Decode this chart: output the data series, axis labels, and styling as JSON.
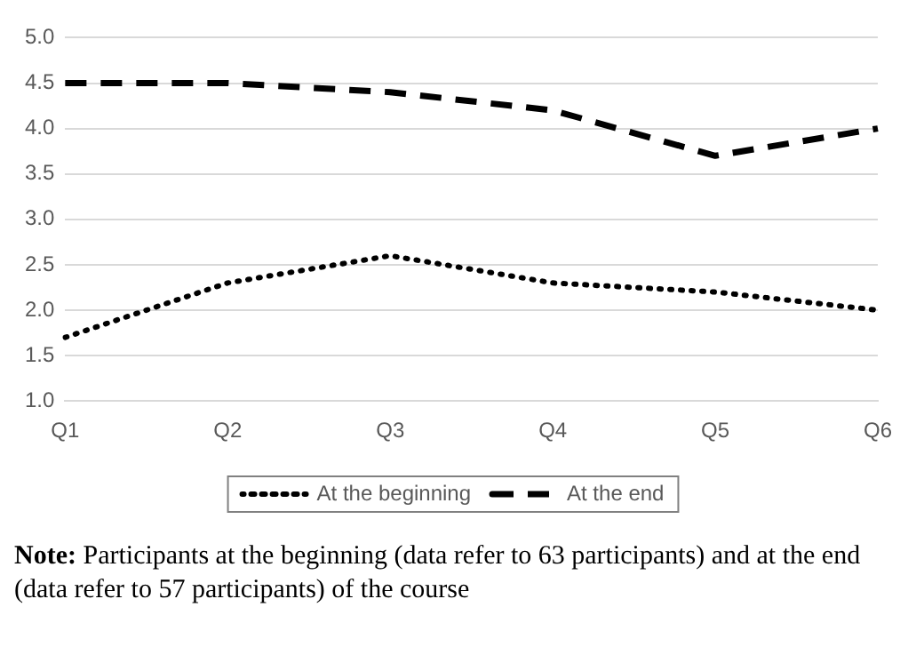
{
  "chart_data": {
    "type": "line",
    "categories": [
      "Q1",
      "Q2",
      "Q3",
      "Q4",
      "Q5",
      "Q6"
    ],
    "series": [
      {
        "name": "At the beginning",
        "color": "#000000",
        "line_style": "dotted",
        "values": [
          1.7,
          2.3,
          2.6,
          2.3,
          2.2,
          2.0
        ]
      },
      {
        "name": "At the end",
        "color": "#000000",
        "line_style": "dashed",
        "values": [
          4.5,
          4.5,
          4.4,
          4.2,
          3.7,
          4.0
        ]
      }
    ],
    "ylim": [
      1.0,
      5.0
    ],
    "yticks": [
      {
        "value": 1,
        "label": "1.0"
      },
      1.5,
      {
        "value": 2,
        "label": "2.0"
      },
      2.5,
      {
        "value": 3,
        "label": "3.0"
      },
      3.5,
      {
        "value": 4,
        "label": "4.0"
      },
      4.5,
      {
        "value": 5,
        "label": "5.0"
      }
    ],
    "grid": "y",
    "legend": "bottom",
    "marker": "none",
    "annotations": [
      "Note: Participants at the beginning (data refer to 63 participants) and at the end (data refer to 57 participants) of the course"
    ]
  }
}
